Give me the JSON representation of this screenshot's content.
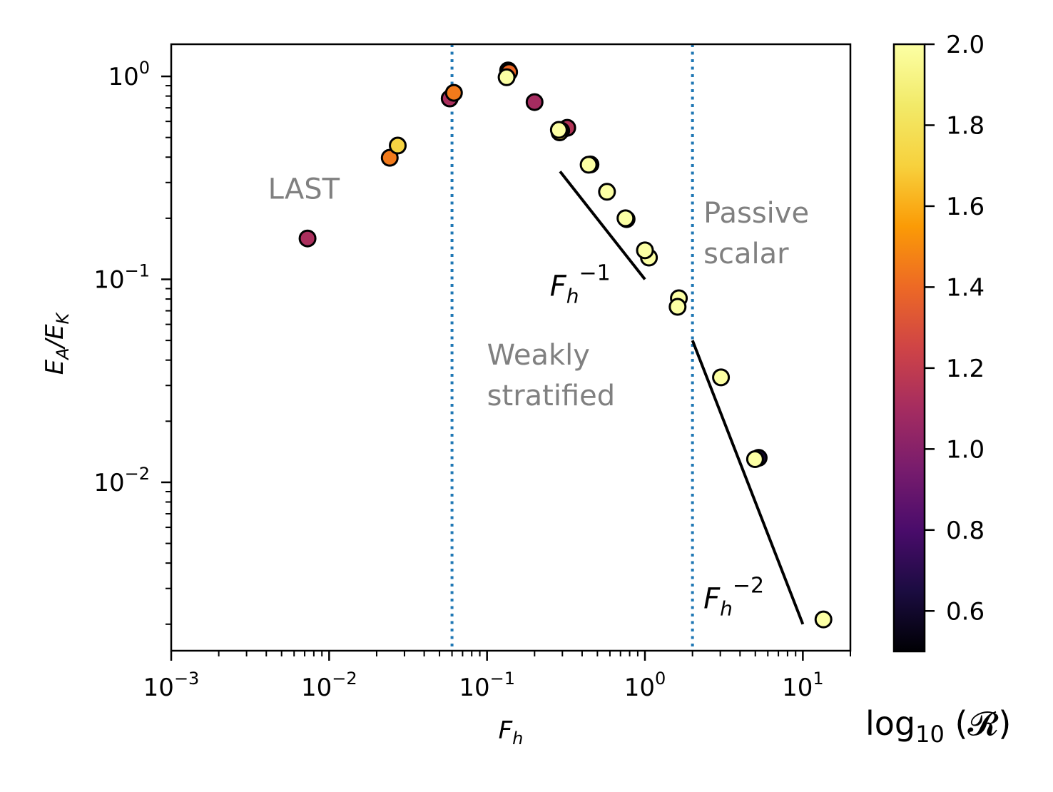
{
  "chart_data": {
    "type": "scatter",
    "title": "",
    "xlabel": "F_h",
    "ylabel": "E_A/E_K",
    "xscale": "log",
    "yscale": "log",
    "xlim": [
      0.001,
      20
    ],
    "ylim": [
      0.00148,
      1.44
    ],
    "grid": false,
    "x_ticks": [
      {
        "value": 0.001,
        "base": "10",
        "exp": "−3"
      },
      {
        "value": 0.01,
        "base": "10",
        "exp": "−2"
      },
      {
        "value": 0.1,
        "base": "10",
        "exp": "−1"
      },
      {
        "value": 1,
        "base": "10",
        "exp": "0"
      },
      {
        "value": 10,
        "base": "10",
        "exp": "1"
      }
    ],
    "y_ticks": [
      {
        "value": 1,
        "base": "10",
        "exp": "0"
      },
      {
        "value": 0.1,
        "base": "10",
        "exp": "−1"
      },
      {
        "value": 0.01,
        "base": "10",
        "exp": "−2"
      }
    ],
    "colorbar": {
      "label": "log10(R)",
      "label_main": "log",
      "label_sub": "10",
      "label_arg": "(𝓡)",
      "colormap": "inferno",
      "range": [
        0.5,
        2.0
      ],
      "ticks": [
        "0.6",
        "0.8",
        "1.0",
        "1.2",
        "1.4",
        "1.6",
        "1.8",
        "2.0"
      ],
      "tick_values": [
        0.6,
        0.8,
        1.0,
        1.2,
        1.4,
        1.6,
        1.8,
        2.0
      ]
    },
    "points": [
      {
        "x": 0.0073,
        "y": 0.159,
        "c": 1.12
      },
      {
        "x": 0.0242,
        "y": 0.397,
        "c": 1.45
      },
      {
        "x": 0.0272,
        "y": 0.456,
        "c": 1.72
      },
      {
        "x": 0.058,
        "y": 0.778,
        "c": 1.12
      },
      {
        "x": 0.0617,
        "y": 0.83,
        "c": 1.45
      },
      {
        "x": 0.136,
        "y": 1.07,
        "c": 0.6
      },
      {
        "x": 0.138,
        "y": 1.05,
        "c": 1.4
      },
      {
        "x": 0.133,
        "y": 0.99,
        "c": 2.0
      },
      {
        "x": 0.2,
        "y": 0.747,
        "c": 1.1
      },
      {
        "x": 0.322,
        "y": 0.558,
        "c": 1.15
      },
      {
        "x": 0.295,
        "y": 0.54,
        "c": 0.6
      },
      {
        "x": 0.288,
        "y": 0.53,
        "c": 1.75
      },
      {
        "x": 0.285,
        "y": 0.545,
        "c": 2.0
      },
      {
        "x": 0.452,
        "y": 0.368,
        "c": 0.6
      },
      {
        "x": 0.44,
        "y": 0.367,
        "c": 2.0
      },
      {
        "x": 0.575,
        "y": 0.27,
        "c": 2.0
      },
      {
        "x": 0.765,
        "y": 0.198,
        "c": 0.6
      },
      {
        "x": 0.753,
        "y": 0.2,
        "c": 2.0
      },
      {
        "x": 1.06,
        "y": 0.128,
        "c": 2.0
      },
      {
        "x": 1.0,
        "y": 0.139,
        "c": 2.0
      },
      {
        "x": 1.64,
        "y": 0.0807,
        "c": 2.0
      },
      {
        "x": 1.61,
        "y": 0.0732,
        "c": 2.0
      },
      {
        "x": 3.03,
        "y": 0.0329,
        "c": 2.0
      },
      {
        "x": 5.25,
        "y": 0.0132,
        "c": 0.6
      },
      {
        "x": 4.98,
        "y": 0.013,
        "c": 2.0
      },
      {
        "x": 13.5,
        "y": 0.00211,
        "c": 2.0
      }
    ],
    "vlines": [
      {
        "x": 0.06,
        "style": "dotted",
        "color": "#1f77b4"
      },
      {
        "x": 2.0,
        "style": "dotted",
        "color": "#1f77b4"
      }
    ],
    "reference_lines": [
      {
        "name": "Fh^-1",
        "x": [
          0.29,
          1.0
        ],
        "y": [
          0.34,
          0.1
        ],
        "label_base": "F",
        "label_sub": "h",
        "label_sup": "−1",
        "label_at": [
          0.25,
          0.083
        ]
      },
      {
        "name": "Fh^-2",
        "x": [
          2.0,
          10.0
        ],
        "y": [
          0.05,
          0.002
        ],
        "label_base": "F",
        "label_sub": "h",
        "label_sup": "−2",
        "label_at": [
          2.35,
          0.0024
        ]
      }
    ],
    "annotations": [
      {
        "text": "LAST",
        "lines": [
          "LAST"
        ],
        "x": 0.0041,
        "y": 0.25
      },
      {
        "text": "Weakly stratified",
        "lines": [
          "Weakly",
          "stratified"
        ],
        "x": 0.1,
        "y": 0.038
      },
      {
        "text": "Passive scalar",
        "lines": [
          "Passive",
          "scalar"
        ],
        "x": 2.35,
        "y": 0.19
      }
    ]
  }
}
